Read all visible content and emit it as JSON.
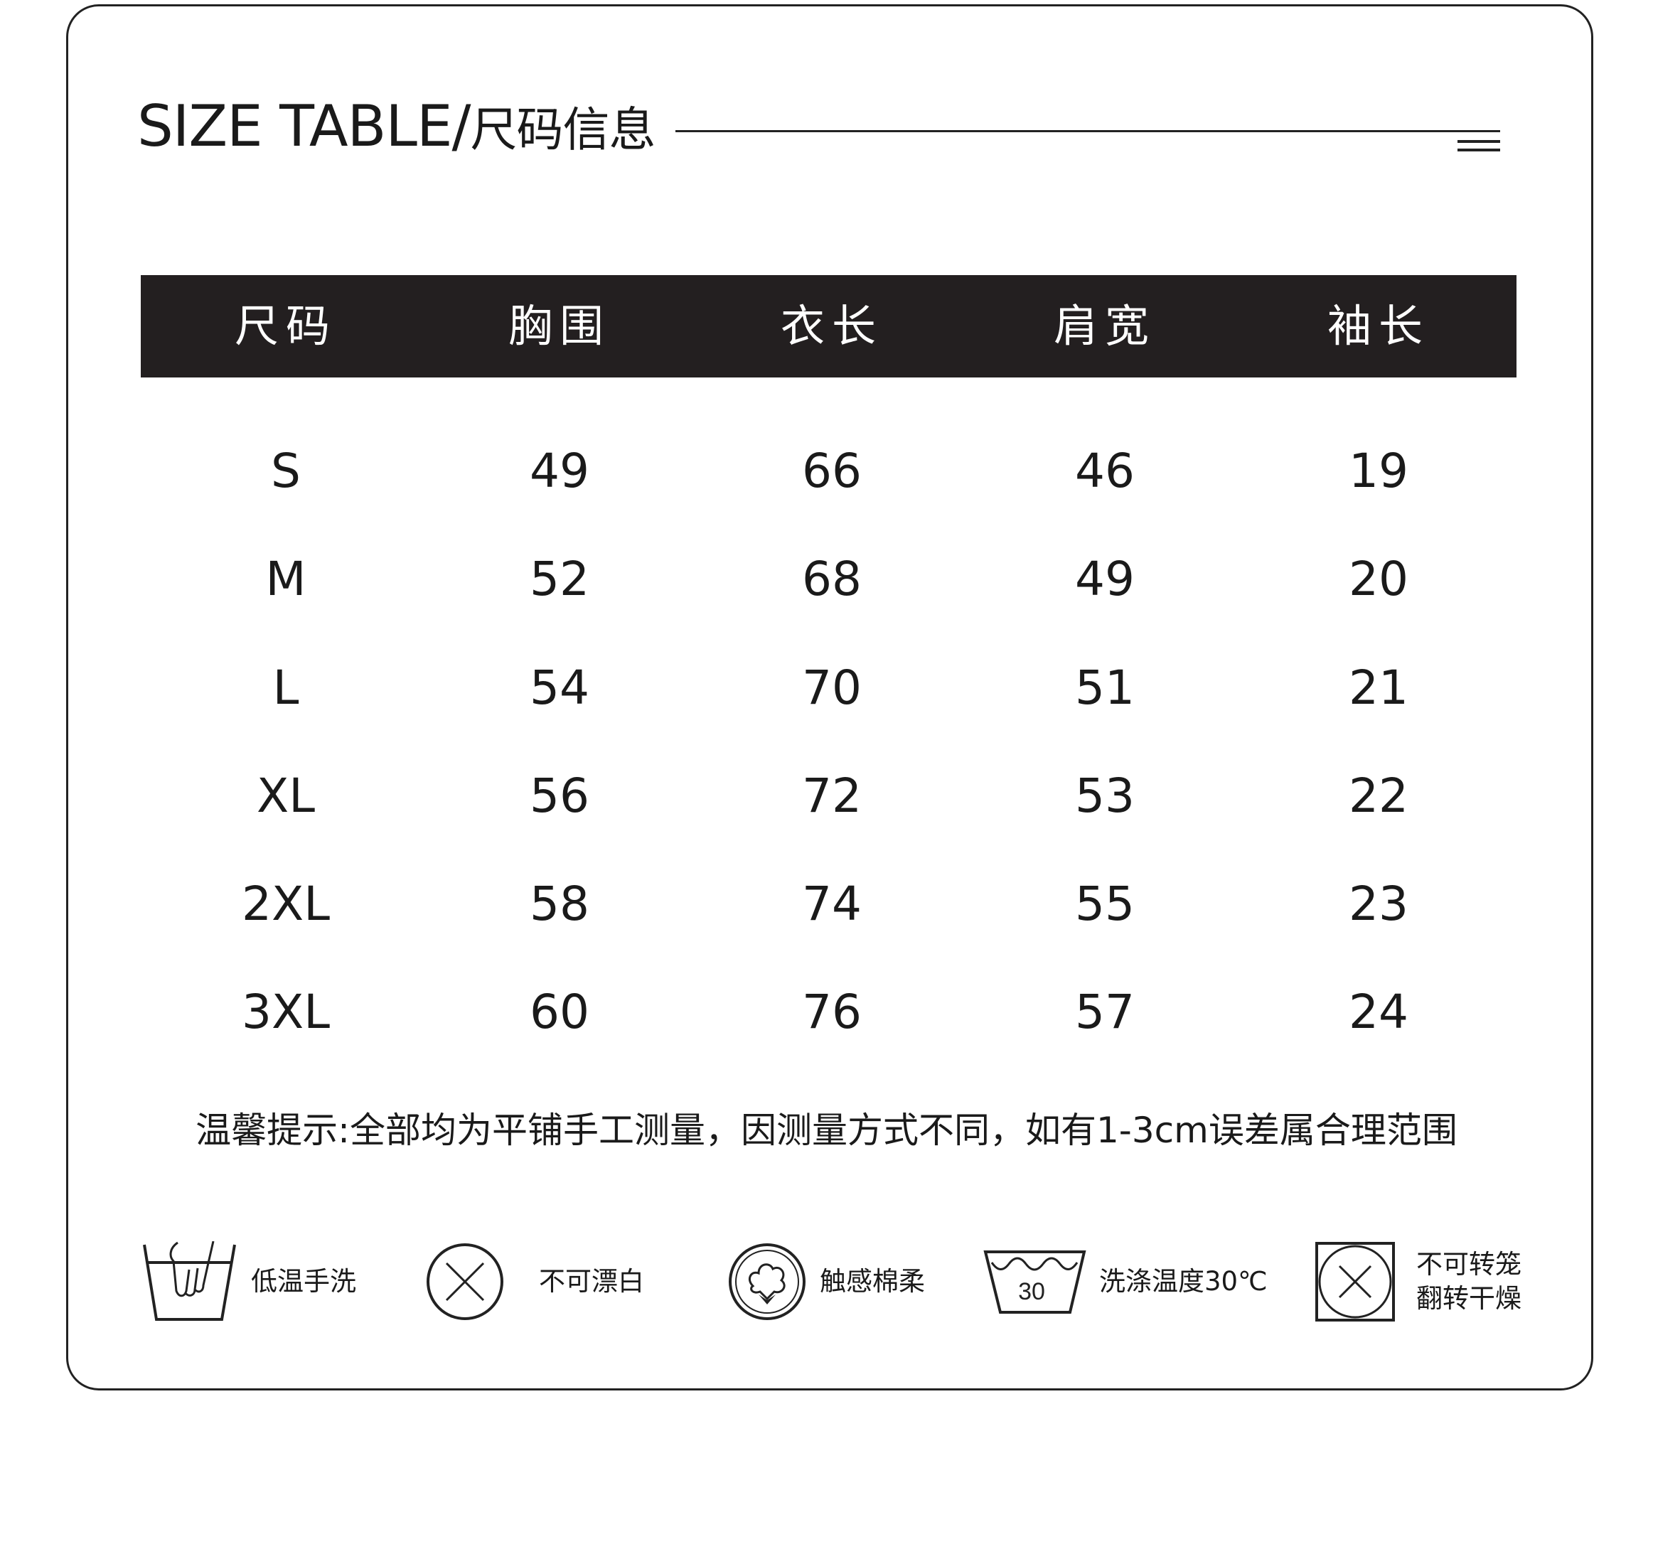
{
  "title": {
    "en": "SIZE TABLE/",
    "cn": "尺码信息"
  },
  "table": {
    "headers": [
      "尺码",
      "胸围",
      "衣长",
      "肩宽",
      "袖长"
    ],
    "rows": [
      [
        "S",
        "49",
        "66",
        "46",
        "19"
      ],
      [
        "M",
        "52",
        "68",
        "49",
        "20"
      ],
      [
        "L",
        "54",
        "70",
        "51",
        "21"
      ],
      [
        "XL",
        "56",
        "72",
        "53",
        "22"
      ],
      [
        "2XL",
        "58",
        "74",
        "55",
        "23"
      ],
      [
        "3XL",
        "60",
        "76",
        "57",
        "24"
      ]
    ]
  },
  "note": "温馨提示:全部均为平铺手工测量，因测量方式不同，如有1-3cm误差属合理范围",
  "care": [
    {
      "icon": "hand-wash-icon",
      "label": "低温手洗"
    },
    {
      "icon": "no-bleach-icon",
      "label": "不可漂白"
    },
    {
      "icon": "cotton-icon",
      "label": "触感棉柔"
    },
    {
      "icon": "wash-30-icon",
      "label": "洗涤温度30℃",
      "temp": "30"
    },
    {
      "icon": "no-tumble-dry-icon",
      "label": "不可转笼",
      "label2": "翻转干燥"
    }
  ]
}
